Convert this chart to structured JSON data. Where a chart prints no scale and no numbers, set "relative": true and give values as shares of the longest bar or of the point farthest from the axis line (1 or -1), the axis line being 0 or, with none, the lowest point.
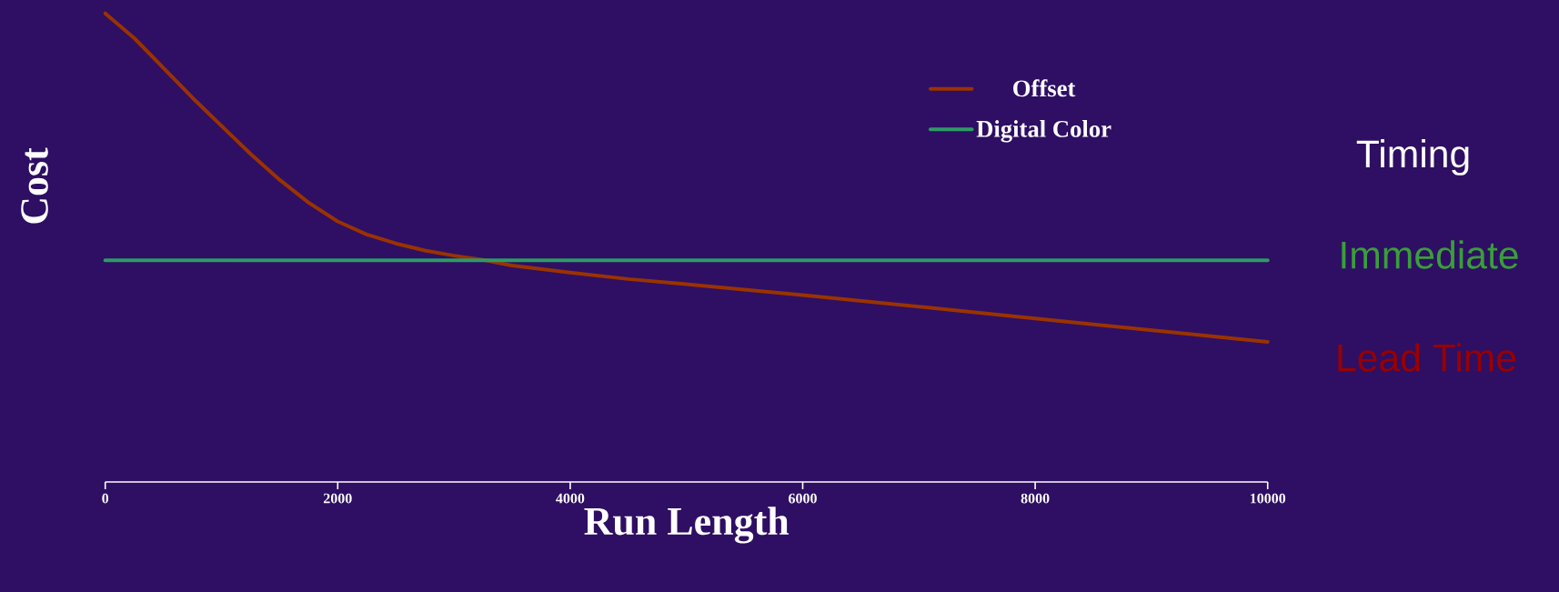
{
  "chart_data": {
    "type": "line",
    "relative": true,
    "xlabel": "Run Length",
    "ylabel": "Cost",
    "xlim": [
      0,
      10000
    ],
    "xticks": [
      0,
      2000,
      4000,
      6000,
      8000,
      10000
    ],
    "legend": "top right",
    "series": [
      {
        "name": "Offset",
        "color": "#9a3300",
        "x": [
          0,
          250,
          750,
          1250,
          1500,
          1750,
          2000,
          2250,
          2500,
          2750,
          3000,
          3250,
          3500,
          4000,
          4500,
          5000,
          6000,
          8000,
          10000
        ],
        "values": [
          1.0,
          0.947,
          0.82,
          0.7,
          0.645,
          0.596,
          0.556,
          0.528,
          0.509,
          0.494,
          0.483,
          0.474,
          0.462,
          0.447,
          0.433,
          0.422,
          0.399,
          0.349,
          0.299
        ]
      },
      {
        "name": "Digital Color",
        "color": "#2e9a66",
        "x": [
          0,
          10000
        ],
        "values": [
          0.473,
          0.473
        ]
      }
    ],
    "annotations": [
      "Timing",
      "Immediate",
      "Lead Time"
    ]
  }
}
